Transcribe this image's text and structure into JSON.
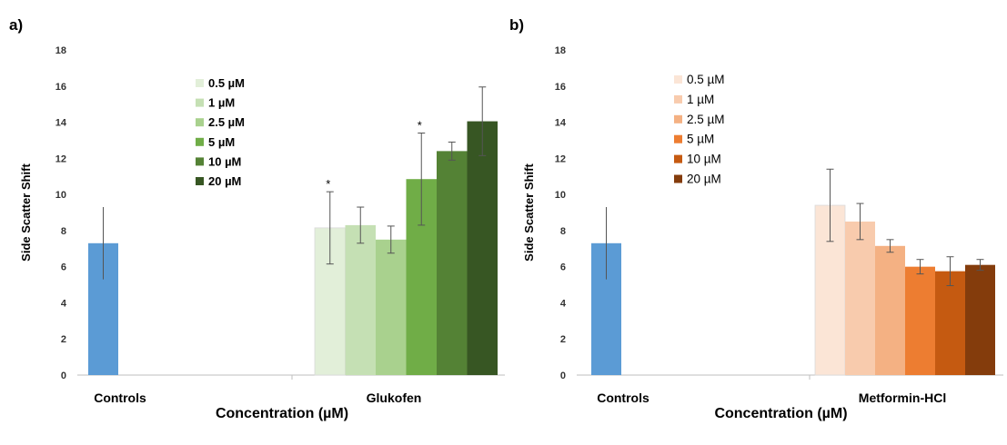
{
  "chart_data": [
    {
      "panel": "a)",
      "type": "bar",
      "ylabel": "Side Scatter Shift",
      "xlabel": "Concentration (µM)",
      "ylim": [
        0,
        18
      ],
      "yticks": [
        0,
        2,
        4,
        6,
        8,
        10,
        12,
        14,
        16,
        18
      ],
      "categories": [
        "Controls",
        "Glukofen"
      ],
      "legend_placement": "top-center",
      "control": {
        "value": 7.3,
        "error": 2.0,
        "color": "#5b9bd5"
      },
      "series": [
        {
          "name": "0.5 µM",
          "value": 8.15,
          "error": 2.0,
          "significant": true,
          "color": "#e2efd9"
        },
        {
          "name": "1 µM",
          "value": 8.3,
          "error": 1.0,
          "significant": false,
          "color": "#c5e0b4"
        },
        {
          "name": "2.5 µM",
          "value": 7.5,
          "error": 0.75,
          "significant": false,
          "color": "#a9d18e"
        },
        {
          "name": "5 µM",
          "value": 10.85,
          "error": 2.55,
          "significant": true,
          "color": "#70ad47"
        },
        {
          "name": "10 µM",
          "value": 12.4,
          "error": 0.5,
          "significant": false,
          "color": "#548235"
        },
        {
          "name": "20 µM",
          "value": 14.05,
          "error": 1.9,
          "significant": false,
          "color": "#375623"
        }
      ]
    },
    {
      "panel": "b)",
      "type": "bar",
      "ylabel": "Side Scatter Shift",
      "xlabel": "Concentration (µM)",
      "ylim": [
        0,
        18
      ],
      "yticks": [
        0,
        2,
        4,
        6,
        8,
        10,
        12,
        14,
        16,
        18
      ],
      "categories": [
        "Controls",
        "Metformin-HCl"
      ],
      "legend_placement": "top-center",
      "control": {
        "value": 7.3,
        "error": 2.0,
        "color": "#5b9bd5"
      },
      "series": [
        {
          "name": "0.5 µM",
          "value": 9.4,
          "error": 2.0,
          "significant": false,
          "color": "#fbe5d6"
        },
        {
          "name": "1 µM",
          "value": 8.5,
          "error": 1.0,
          "significant": false,
          "color": "#f8cbad"
        },
        {
          "name": "2.5 µM",
          "value": 7.15,
          "error": 0.35,
          "significant": false,
          "color": "#f4b183"
        },
        {
          "name": "5 µM",
          "value": 6.0,
          "error": 0.4,
          "significant": false,
          "color": "#ed7d31"
        },
        {
          "name": "10 µM",
          "value": 5.75,
          "error": 0.8,
          "significant": false,
          "color": "#c55a11"
        },
        {
          "name": "20 µM",
          "value": 6.1,
          "error": 0.3,
          "significant": false,
          "color": "#843c0c"
        }
      ]
    }
  ],
  "significance_mark": "*"
}
